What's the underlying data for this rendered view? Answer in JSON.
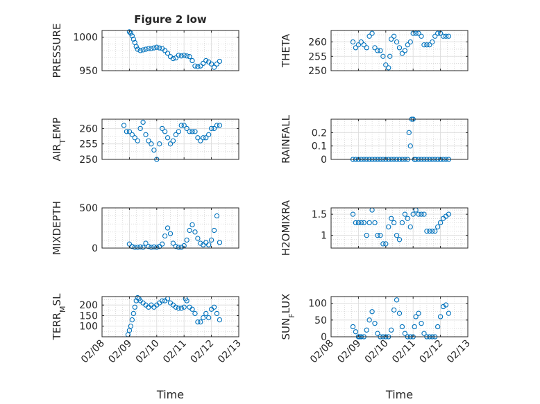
{
  "colors": {
    "marker": "#0072BD",
    "axis": "#262626",
    "grid": "#c8c8c8",
    "background": "#ffffff"
  },
  "chart_data": [
    {
      "id": "pressure",
      "type": "scatter",
      "title": "Figure 2 low",
      "ylabel": "PRESSURE",
      "ylabel_sub": "",
      "ylabel_post": "",
      "xlabel": "",
      "xlim": [
        0,
        5
      ],
      "ylim": [
        950,
        1010
      ],
      "yticks": [
        950,
        1000
      ],
      "yticklabels": [
        "950",
        "1000"
      ],
      "minor_step": 10,
      "x": [
        1.0,
        1.05,
        1.1,
        1.15,
        1.2,
        1.25,
        1.3,
        1.4,
        1.5,
        1.6,
        1.7,
        1.8,
        1.9,
        2.0,
        2.1,
        2.2,
        2.3,
        2.4,
        2.5,
        2.6,
        2.7,
        2.8,
        2.9,
        3.0,
        3.1,
        3.2,
        3.3,
        3.4,
        3.5,
        3.6,
        3.7,
        3.8,
        3.9,
        4.0,
        4.1,
        4.2,
        4.3
      ],
      "y": [
        1008,
        1006,
        1002,
        997,
        992,
        986,
        982,
        980,
        981,
        982,
        983,
        983,
        984,
        985,
        984,
        983,
        980,
        976,
        971,
        968,
        969,
        973,
        972,
        973,
        972,
        971,
        965,
        957,
        956,
        957,
        961,
        965,
        963,
        960,
        955,
        960,
        964
      ]
    },
    {
      "id": "theta",
      "type": "scatter",
      "title": "",
      "ylabel": "THETA",
      "ylabel_sub": "",
      "ylabel_post": "",
      "xlabel": "",
      "xlim": [
        0,
        5
      ],
      "ylim": [
        250,
        264
      ],
      "yticks": [
        250,
        255,
        260
      ],
      "yticklabels": [
        "250",
        "255",
        "260"
      ],
      "minor_step": 2.5,
      "x": [
        0.8,
        0.9,
        1.0,
        1.1,
        1.2,
        1.3,
        1.4,
        1.5,
        1.6,
        1.7,
        1.8,
        1.9,
        2.0,
        2.1,
        2.15,
        2.2,
        2.3,
        2.4,
        2.5,
        2.6,
        2.7,
        2.8,
        2.9,
        3.0,
        3.1,
        3.2,
        3.3,
        3.4,
        3.5,
        3.6,
        3.7,
        3.8,
        3.9,
        4.0,
        4.1,
        4.2,
        4.3
      ],
      "y": [
        260,
        258,
        259,
        260,
        259,
        258,
        262,
        263,
        258,
        257,
        257,
        255,
        252,
        251,
        255,
        261,
        262,
        260,
        258,
        256,
        257,
        259,
        260,
        263,
        263,
        263,
        262,
        259,
        259,
        259,
        260,
        262,
        263,
        263,
        262,
        262,
        262
      ]
    },
    {
      "id": "air_temp",
      "type": "scatter",
      "title": "",
      "ylabel": "AIR",
      "ylabel_sub": "T",
      "ylabel_post": "EMP",
      "xlabel": "",
      "xlim": [
        0,
        5
      ],
      "ylim": [
        250,
        263
      ],
      "yticks": [
        250,
        255,
        260
      ],
      "yticklabels": [
        "250",
        "255",
        "260"
      ],
      "minor_step": 2.5,
      "x": [
        0.8,
        0.9,
        1.0,
        1.1,
        1.2,
        1.3,
        1.4,
        1.5,
        1.6,
        1.7,
        1.8,
        1.9,
        2.0,
        2.1,
        2.2,
        2.3,
        2.4,
        2.5,
        2.6,
        2.7,
        2.8,
        2.9,
        3.0,
        3.1,
        3.2,
        3.3,
        3.4,
        3.5,
        3.6,
        3.7,
        3.8,
        3.9,
        4.0,
        4.1,
        4.2,
        4.3
      ],
      "y": [
        261,
        259,
        259,
        258,
        257,
        256,
        260,
        262,
        258,
        256,
        255,
        253,
        250,
        255,
        260,
        259,
        257,
        255,
        256,
        258,
        259,
        261,
        261,
        260,
        259,
        259,
        259,
        257,
        256,
        257,
        257,
        258,
        260,
        260,
        261,
        261
      ]
    },
    {
      "id": "rainfall",
      "type": "scatter",
      "title": "",
      "ylabel": "RAINFALL",
      "ylabel_sub": "",
      "ylabel_post": "",
      "xlabel": "",
      "xlim": [
        0,
        5
      ],
      "ylim": [
        0,
        0.3
      ],
      "yticks": [
        0,
        0.1,
        0.2
      ],
      "yticklabels": [
        "0",
        "0.1",
        "0.2"
      ],
      "minor_step": 0.05,
      "x": [
        0.8,
        0.9,
        1.0,
        1.1,
        1.2,
        1.3,
        1.4,
        1.5,
        1.6,
        1.7,
        1.8,
        1.9,
        2.0,
        2.1,
        2.2,
        2.3,
        2.4,
        2.5,
        2.6,
        2.7,
        2.8,
        2.85,
        2.9,
        2.95,
        3.0,
        3.05,
        3.1,
        3.2,
        3.3,
        3.4,
        3.5,
        3.6,
        3.7,
        3.8,
        3.9,
        4.0,
        4.1,
        4.2,
        4.3
      ],
      "y": [
        0,
        0,
        0,
        0,
        0,
        0,
        0,
        0,
        0,
        0,
        0,
        0,
        0,
        0,
        0,
        0,
        0,
        0,
        0,
        0,
        0,
        0.2,
        0.1,
        0.3,
        0.3,
        0,
        0,
        0,
        0,
        0,
        0,
        0,
        0,
        0,
        0,
        0,
        0,
        0,
        0
      ]
    },
    {
      "id": "mixdepth",
      "type": "scatter",
      "title": "",
      "ylabel": "MIXDEPTH",
      "ylabel_sub": "",
      "ylabel_post": "",
      "xlabel": "",
      "xlim": [
        0,
        5
      ],
      "ylim": [
        0,
        500
      ],
      "yticks": [
        0,
        500
      ],
      "yticklabels": [
        "0",
        "500"
      ],
      "minor_step": 100,
      "x": [
        1.0,
        1.1,
        1.2,
        1.3,
        1.4,
        1.5,
        1.6,
        1.7,
        1.8,
        1.9,
        2.0,
        2.1,
        2.2,
        2.3,
        2.4,
        2.5,
        2.6,
        2.7,
        2.8,
        2.9,
        3.0,
        3.1,
        3.2,
        3.3,
        3.4,
        3.5,
        3.6,
        3.7,
        3.8,
        3.9,
        4.0,
        4.1,
        4.2,
        4.3
      ],
      "y": [
        50,
        20,
        10,
        10,
        15,
        10,
        60,
        20,
        10,
        15,
        10,
        20,
        50,
        150,
        250,
        180,
        60,
        20,
        10,
        10,
        30,
        100,
        220,
        290,
        200,
        120,
        60,
        40,
        70,
        40,
        100,
        220,
        400,
        70
      ]
    },
    {
      "id": "h2omixra",
      "type": "scatter",
      "title": "",
      "ylabel": "H2OMIXRA",
      "ylabel_sub": "",
      "ylabel_post": "",
      "xlabel": "",
      "xlim": [
        0,
        5
      ],
      "ylim": [
        0.7,
        1.65
      ],
      "yticks": [
        1,
        1.5
      ],
      "yticklabels": [
        "1",
        "1.5"
      ],
      "minor_step": 0.1,
      "x": [
        0.8,
        0.9,
        1.0,
        1.1,
        1.2,
        1.3,
        1.4,
        1.5,
        1.6,
        1.7,
        1.8,
        1.9,
        2.0,
        2.1,
        2.2,
        2.3,
        2.4,
        2.5,
        2.6,
        2.7,
        2.8,
        2.9,
        3.0,
        3.1,
        3.2,
        3.3,
        3.4,
        3.5,
        3.6,
        3.7,
        3.8,
        3.9,
        4.0,
        4.1,
        4.2,
        4.3
      ],
      "y": [
        1.5,
        1.3,
        1.3,
        1.3,
        1.3,
        1.0,
        1.3,
        1.6,
        1.3,
        1.0,
        1.0,
        0.8,
        0.8,
        1.2,
        1.4,
        1.3,
        1.0,
        0.9,
        1.3,
        1.5,
        1.4,
        1.2,
        1.5,
        1.6,
        1.5,
        1.5,
        1.5,
        1.1,
        1.1,
        1.1,
        1.1,
        1.2,
        1.3,
        1.4,
        1.45,
        1.5
      ]
    },
    {
      "id": "terr_msl",
      "type": "scatter",
      "title": "",
      "ylabel": "TERR",
      "ylabel_sub": "M",
      "ylabel_post": "SL",
      "xlabel": "Time",
      "xlim": [
        0,
        5
      ],
      "ylim": [
        50,
        240
      ],
      "yticks": [
        100,
        150,
        200
      ],
      "yticklabels": [
        "100",
        "150",
        "200"
      ],
      "minor_step": 25,
      "x": [
        0.95,
        1.0,
        1.05,
        1.1,
        1.15,
        1.2,
        1.25,
        1.3,
        1.35,
        1.4,
        1.5,
        1.6,
        1.7,
        1.8,
        1.9,
        2.0,
        2.1,
        2.2,
        2.3,
        2.4,
        2.5,
        2.6,
        2.7,
        2.8,
        2.9,
        3.0,
        3.05,
        3.1,
        3.2,
        3.3,
        3.4,
        3.5,
        3.6,
        3.7,
        3.8,
        3.9,
        4.0,
        4.1,
        4.2,
        4.3
      ],
      "y": [
        60,
        80,
        100,
        130,
        160,
        190,
        220,
        235,
        230,
        220,
        210,
        200,
        190,
        200,
        190,
        200,
        210,
        220,
        220,
        230,
        210,
        200,
        190,
        185,
        185,
        190,
        230,
        220,
        190,
        180,
        160,
        120,
        120,
        140,
        160,
        140,
        180,
        190,
        160,
        130
      ]
    },
    {
      "id": "sun_flux",
      "type": "scatter",
      "title": "",
      "ylabel": "SUN",
      "ylabel_sub": "F",
      "ylabel_post": "LUX",
      "xlabel": "Time",
      "xlim": [
        0,
        5
      ],
      "ylim": [
        0,
        120
      ],
      "yticks": [
        0,
        50,
        100
      ],
      "yticklabels": [
        "0",
        "50",
        "100"
      ],
      "minor_step": 25,
      "x": [
        0.8,
        0.9,
        1.0,
        1.05,
        1.1,
        1.2,
        1.3,
        1.4,
        1.5,
        1.6,
        1.7,
        1.8,
        1.9,
        2.0,
        2.1,
        2.2,
        2.3,
        2.4,
        2.5,
        2.6,
        2.7,
        2.8,
        2.9,
        3.0,
        3.05,
        3.1,
        3.2,
        3.3,
        3.4,
        3.5,
        3.6,
        3.7,
        3.8,
        3.9,
        4.0,
        4.1,
        4.2,
        4.3
      ],
      "y": [
        30,
        15,
        0,
        0,
        0,
        0,
        20,
        50,
        75,
        40,
        10,
        0,
        0,
        0,
        0,
        20,
        80,
        110,
        70,
        30,
        10,
        0,
        0,
        0,
        30,
        60,
        70,
        40,
        10,
        0,
        0,
        0,
        0,
        30,
        60,
        90,
        95,
        70
      ]
    }
  ],
  "x_axis": {
    "ticks": [
      0,
      1,
      2,
      3,
      4,
      5
    ],
    "labels": [
      "02/08",
      "02/09",
      "02/10",
      "02/11",
      "02/12",
      "02/13"
    ]
  }
}
